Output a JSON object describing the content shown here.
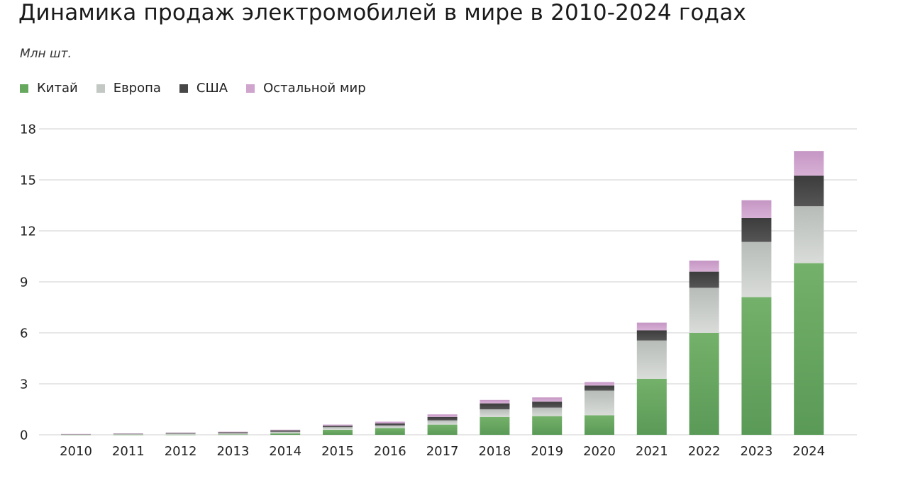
{
  "title": "Динамика продаж электромобилей в мире в 2010-2024 годах",
  "unit_label": "Млн шт.",
  "legend": [
    {
      "label": "Китай",
      "color": "#67a85f",
      "icon": "square-swatch"
    },
    {
      "label": "Европа",
      "color": "#c4c8c5",
      "icon": "square-swatch"
    },
    {
      "label": "США",
      "color": "#474747",
      "icon": "square-swatch"
    },
    {
      "label": "Остальной мир",
      "color": "#cfa4cd",
      "icon": "square-swatch"
    }
  ],
  "chart_data": {
    "type": "bar",
    "stacked": true,
    "title": "Динамика продаж электромобилей в мире в 2010-2024 годах",
    "ylabel": "Млн шт.",
    "xlabel": "",
    "ylim": [
      0,
      18
    ],
    "yticks": [
      0,
      3,
      6,
      9,
      12,
      15,
      18
    ],
    "grid": true,
    "legend_position": "top-left",
    "categories": [
      "2010",
      "2011",
      "2012",
      "2013",
      "2014",
      "2015",
      "2016",
      "2017",
      "2018",
      "2019",
      "2020",
      "2021",
      "2022",
      "2023",
      "2024"
    ],
    "series": [
      {
        "name": "Китай",
        "color": "#67a85f",
        "values": [
          0.01,
          0.01,
          0.01,
          0.02,
          0.08,
          0.3,
          0.4,
          0.6,
          1.05,
          1.1,
          1.15,
          3.3,
          6.0,
          8.1,
          10.1
        ]
      },
      {
        "name": "Европа",
        "color": "#c4c8c5",
        "values": [
          0.02,
          0.03,
          0.06,
          0.08,
          0.1,
          0.15,
          0.15,
          0.25,
          0.45,
          0.5,
          1.45,
          2.25,
          2.65,
          3.25,
          3.35
        ]
      },
      {
        "name": "США",
        "color": "#474747",
        "values": [
          0.01,
          0.02,
          0.04,
          0.05,
          0.08,
          0.08,
          0.12,
          0.2,
          0.35,
          0.35,
          0.3,
          0.6,
          0.95,
          1.4,
          1.8
        ]
      },
      {
        "name": "Остальной мир",
        "color": "#cfa4cd",
        "values": [
          0.01,
          0.02,
          0.02,
          0.03,
          0.04,
          0.07,
          0.1,
          0.15,
          0.2,
          0.25,
          0.2,
          0.45,
          0.65,
          1.05,
          1.45
        ]
      }
    ]
  }
}
